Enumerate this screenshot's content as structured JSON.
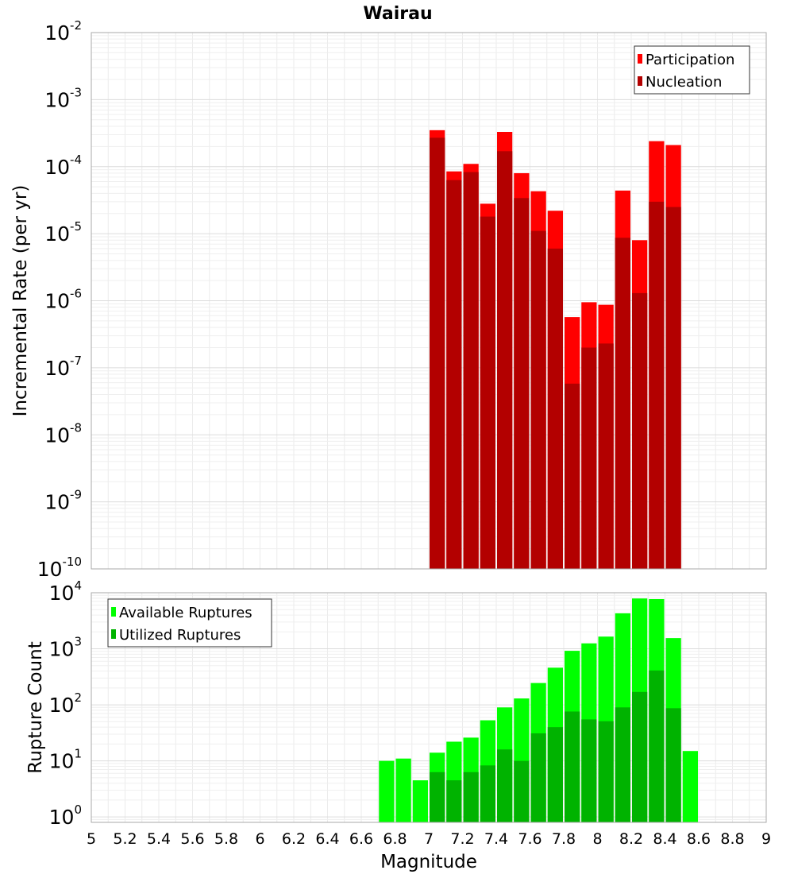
{
  "chart_data": [
    {
      "type": "bar",
      "title": "Wairau",
      "xlabel": "",
      "ylabel": "Incremental Rate (per yr)",
      "yscale": "log",
      "xlim": [
        5,
        9
      ],
      "ylim": [
        1e-10,
        0.01
      ],
      "grid": true,
      "legend_position": "top-right",
      "ytick_labels": [
        "10^-10",
        "10^-9",
        "10^-8",
        "10^-7",
        "10^-6",
        "10^-5",
        "10^-4",
        "10^-3",
        "10^-2"
      ],
      "bin_width": 0.1,
      "x": [
        7.05,
        7.15,
        7.25,
        7.35,
        7.45,
        7.55,
        7.65,
        7.75,
        7.85,
        7.95,
        8.05,
        8.15,
        8.25,
        8.35,
        8.45
      ],
      "series": [
        {
          "name": "Participation",
          "color": "#ff0000",
          "values": [
            0.00035,
            8.5e-05,
            0.00011,
            2.8e-05,
            0.00033,
            8e-05,
            4.3e-05,
            2.2e-05,
            5.7e-07,
            9.5e-07,
            8.7e-07,
            4.4e-05,
            8e-06,
            0.00024,
            0.00021
          ]
        },
        {
          "name": "Nucleation",
          "color": "#b30000",
          "values": [
            0.00027,
            6.3e-05,
            8.3e-05,
            1.8e-05,
            0.00017,
            3.4e-05,
            1.1e-05,
            6e-06,
            5.8e-08,
            2e-07,
            2.3e-07,
            8.7e-06,
            1.3e-06,
            3e-05,
            2.5e-05
          ]
        }
      ]
    },
    {
      "type": "bar",
      "title": "",
      "xlabel": "Magnitude",
      "ylabel": "Rupture Count",
      "yscale": "log",
      "xlim": [
        5,
        9
      ],
      "ylim": [
        0.8,
        10000
      ],
      "grid": true,
      "legend_position": "top-left",
      "xtick_labels": [
        "5",
        "5.2",
        "5.4",
        "5.6",
        "5.8",
        "6",
        "6.2",
        "6.4",
        "6.6",
        "6.8",
        "7",
        "7.2",
        "7.4",
        "7.6",
        "7.8",
        "8",
        "8.2",
        "8.4",
        "8.6",
        "8.8",
        "9"
      ],
      "ytick_labels": [
        "10^0",
        "10^1",
        "10^2",
        "10^3",
        "10^4"
      ],
      "bin_width": 0.1,
      "x": [
        6.75,
        6.85,
        6.95,
        7.05,
        7.15,
        7.25,
        7.35,
        7.45,
        7.55,
        7.65,
        7.75,
        7.85,
        7.95,
        8.05,
        8.15,
        8.25,
        8.35,
        8.45,
        8.55
      ],
      "series": [
        {
          "name": "Available Ruptures",
          "color": "#00ff00",
          "values": [
            10,
            11,
            4.5,
            14,
            22,
            26,
            53,
            90,
            130,
            245,
            460,
            920,
            1250,
            1650,
            4300,
            7900,
            7700,
            1550,
            15
          ]
        },
        {
          "name": "Utilized Ruptures",
          "color": "#00b300",
          "values": [
            null,
            null,
            null,
            6.3,
            4.5,
            6.3,
            8.3,
            16,
            10,
            31,
            40,
            76,
            55,
            51,
            90,
            170,
            410,
            87,
            null
          ]
        }
      ]
    }
  ]
}
